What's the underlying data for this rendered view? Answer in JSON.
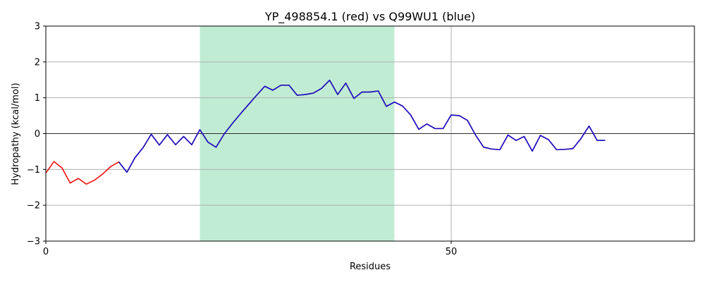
{
  "chart_data": {
    "type": "line",
    "title": "YP_498854.1 (red) vs Q99WU1 (blue)",
    "xlabel": "Residues",
    "ylabel": "Hydropathy (kcal/mol)",
    "xlim": [
      0,
      80
    ],
    "ylim": [
      -3,
      3
    ],
    "xticks": [
      0,
      50
    ],
    "yticks": [
      -3,
      -2,
      -1,
      0,
      1,
      2,
      3
    ],
    "grid": true,
    "zero_line": true,
    "highlight_region": {
      "x_start": 19,
      "x_end": 43,
      "color": "#c0ecd3"
    },
    "series": [
      {
        "color": "#ee1111",
        "x": [
          0,
          1,
          2,
          3,
          4,
          5,
          6,
          7,
          8,
          9,
          10,
          11,
          12,
          13,
          14,
          15,
          16,
          17,
          18,
          19,
          20,
          21,
          22,
          23,
          24,
          25,
          26,
          27,
          28,
          29,
          30,
          31,
          32,
          33,
          34,
          35,
          36,
          37,
          38,
          39,
          40,
          41,
          42,
          43,
          44,
          45,
          46,
          47,
          48,
          49,
          50,
          51,
          52,
          53,
          54,
          55,
          56,
          57,
          58,
          59,
          60,
          61,
          62,
          63,
          64,
          65,
          66,
          67,
          68,
          69
        ],
        "y": [
          -1.1,
          -0.78,
          -0.96,
          -1.38,
          -1.25,
          -1.41,
          -1.3,
          -1.13,
          -0.92,
          -0.79,
          -1.08,
          -0.67,
          -0.39,
          -0.02,
          -0.32,
          -0.03,
          -0.31,
          -0.08,
          -0.31,
          0.11,
          -0.24,
          -0.38,
          -0.01,
          0.28,
          0.55,
          0.81,
          1.07,
          1.32,
          1.21,
          1.35,
          1.35,
          1.07,
          1.09,
          1.13,
          1.26,
          1.49,
          1.09,
          1.41,
          0.98,
          1.16,
          1.16,
          1.19,
          0.76,
          0.88,
          0.77,
          0.52,
          0.12,
          0.27,
          0.14,
          0.14,
          0.52,
          0.5,
          0.37,
          -0.04,
          -0.38,
          -0.43,
          -0.45,
          -0.04,
          -0.19,
          -0.08,
          -0.49,
          -0.05,
          -0.17,
          -0.45,
          -0.44,
          -0.42,
          -0.14,
          0.21,
          -0.19,
          -0.19
        ]
      },
      {
        "color": "#1111cc",
        "x": [
          9,
          10,
          11,
          12,
          13,
          14,
          15,
          16,
          17,
          18,
          19,
          20,
          21,
          22,
          23,
          24,
          25,
          26,
          27,
          28,
          29,
          30,
          31,
          32,
          33,
          34,
          35,
          36,
          37,
          38,
          39,
          40,
          41,
          42,
          43,
          44,
          45,
          46,
          47,
          48,
          49,
          50,
          51,
          52,
          53,
          54,
          55,
          56,
          57,
          58,
          59,
          60,
          61,
          62,
          63,
          64,
          65,
          66,
          67,
          68,
          69
        ],
        "y": [
          -0.79,
          -1.08,
          -0.67,
          -0.39,
          -0.02,
          -0.32,
          -0.03,
          -0.31,
          -0.08,
          -0.31,
          0.11,
          -0.24,
          -0.38,
          -0.01,
          0.28,
          0.55,
          0.81,
          1.07,
          1.32,
          1.21,
          1.35,
          1.35,
          1.07,
          1.09,
          1.13,
          1.26,
          1.49,
          1.09,
          1.41,
          0.98,
          1.16,
          1.16,
          1.19,
          0.76,
          0.88,
          0.77,
          0.52,
          0.12,
          0.27,
          0.14,
          0.14,
          0.52,
          0.5,
          0.37,
          -0.04,
          -0.38,
          -0.43,
          -0.45,
          -0.04,
          -0.19,
          -0.08,
          -0.49,
          -0.05,
          -0.17,
          -0.45,
          -0.44,
          -0.42,
          -0.14,
          0.21,
          -0.19,
          -0.19
        ]
      }
    ]
  }
}
